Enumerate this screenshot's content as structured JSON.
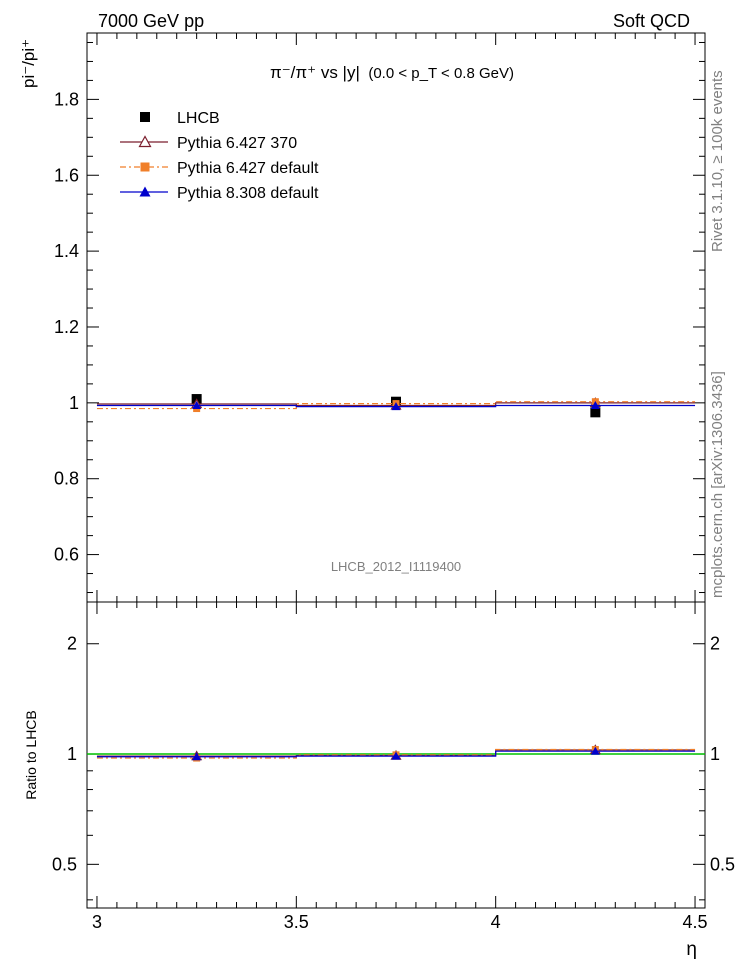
{
  "header": {
    "left": "7000 GeV pp",
    "right": "Soft QCD"
  },
  "side_labels": {
    "rivet": "Rivet 3.1.10, ≥ 100k events",
    "mcplots": "mcplots.cern.ch [arXiv:1306.3436]"
  },
  "chart_data": [
    {
      "type": "line",
      "panel": "main",
      "title": "π⁻/π⁺ vs |y| (0.0 < p_T < 0.8 GeV)",
      "title_main": "π⁻/π⁺ vs |y|",
      "title_sub": "(0.0 < p_T < 0.8 GeV)",
      "ylabel": "pi⁻/pi⁺",
      "xlabel": "",
      "xlim": [
        2.975,
        4.525
      ],
      "ylim": [
        0.475,
        1.975
      ],
      "yticks": [
        0.6,
        0.8,
        1.0,
        1.2,
        1.4,
        1.6,
        1.8
      ],
      "ytick_labels": [
        "0.6",
        "0.8",
        "1",
        "1.2",
        "1.4",
        "1.6",
        "1.8"
      ],
      "analysis_label": "LHCB_2012_I1119400",
      "legend_position": "top-left",
      "x": [
        3.25,
        3.75,
        4.25
      ],
      "x_edges": [
        3.0,
        3.5,
        4.0,
        4.5
      ],
      "series": [
        {
          "name": "LHCB",
          "values": [
            1.01,
            1.003,
            0.975
          ],
          "color": "#000000",
          "marker": "square",
          "style": "points"
        },
        {
          "name": "Pythia 6.427 370",
          "values": [
            0.997,
            0.993,
            1.0
          ],
          "color": "#7b1f2e",
          "marker": "open-triangle",
          "style": "solid"
        },
        {
          "name": "Pythia 6.427 default",
          "values": [
            0.985,
            0.998,
            1.003
          ],
          "color": "#f07f2a",
          "marker": "square",
          "style": "dash-dot"
        },
        {
          "name": "Pythia 8.308 default",
          "values": [
            0.993,
            0.99,
            0.993
          ],
          "color": "#0000cc",
          "marker": "triangle",
          "style": "solid"
        }
      ]
    },
    {
      "type": "line",
      "panel": "ratio",
      "ylabel": "Ratio to LHCB",
      "xlabel": "η",
      "xlim": [
        2.975,
        4.525
      ],
      "ylim": [
        0.38,
        2.6
      ],
      "scale": "log",
      "yticks": [
        0.5,
        1,
        2
      ],
      "ytick_labels": [
        "0.5",
        "1",
        "2"
      ],
      "xticks": [
        3.0,
        3.5,
        4.0,
        4.5
      ],
      "xtick_labels": [
        "3",
        "3.5",
        "4",
        "4.5"
      ],
      "reference_line": {
        "value": 1.0,
        "color": "#00c000"
      },
      "x": [
        3.25,
        3.75,
        4.25
      ],
      "x_edges": [
        3.0,
        3.5,
        4.0,
        4.5
      ],
      "series": [
        {
          "name": "Pythia 6.427 370",
          "values": [
            0.987,
            0.99,
            1.026
          ],
          "color": "#7b1f2e",
          "marker": "open-triangle",
          "style": "solid"
        },
        {
          "name": "Pythia 6.427 default",
          "values": [
            0.975,
            0.995,
            1.029
          ],
          "color": "#f07f2a",
          "marker": "square",
          "style": "dash-dot"
        },
        {
          "name": "Pythia 8.308 default",
          "values": [
            0.983,
            0.987,
            1.018
          ],
          "color": "#0000cc",
          "marker": "triangle",
          "style": "solid"
        }
      ]
    }
  ]
}
